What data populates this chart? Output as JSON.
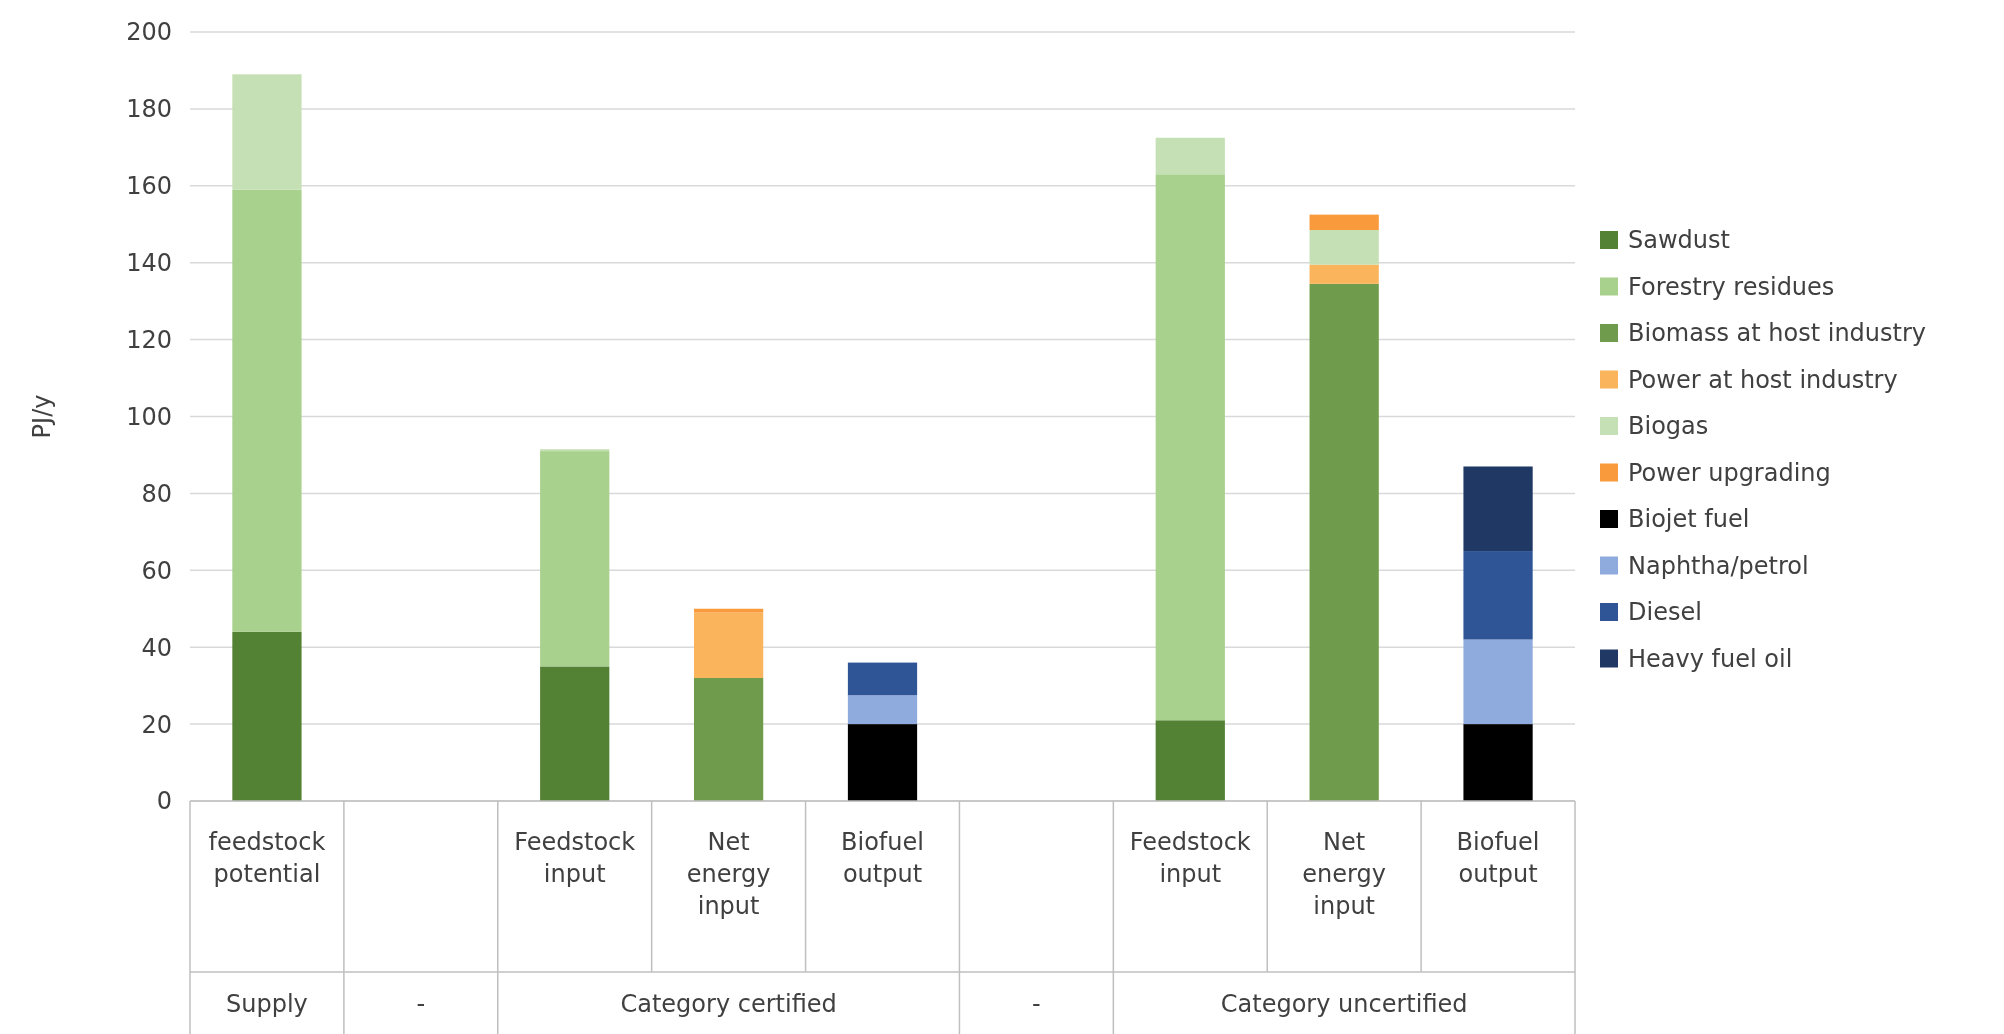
{
  "chart_data": {
    "type": "bar",
    "stacked": true,
    "ylabel": "PJ/y",
    "ylim": [
      0,
      200
    ],
    "yticks": [
      0,
      20,
      40,
      60,
      80,
      100,
      120,
      140,
      160,
      180,
      200
    ],
    "grid": "y",
    "legend": "right",
    "categories": [
      "feedstock potential",
      null,
      "Feedstock input",
      "Net energy input",
      "Biofuel output",
      null,
      "Feedstock input",
      "Net energy input",
      "Biofuel output"
    ],
    "annotations": [
      "Supply",
      "-",
      "Category certified",
      "-",
      "Category uncertified"
    ],
    "series": [
      {
        "name": "Sawdust",
        "color": "#548235",
        "values": [
          44,
          null,
          35,
          null,
          null,
          null,
          21,
          null,
          null
        ]
      },
      {
        "name": "Forestry residues",
        "color": "#a9d18e",
        "values": [
          115,
          null,
          56,
          null,
          null,
          null,
          142,
          null,
          null
        ]
      },
      {
        "name": "Biomass at host industry",
        "color": "#6f9c4c",
        "values": [
          null,
          null,
          null,
          32,
          null,
          null,
          null,
          134.5,
          null
        ]
      },
      {
        "name": "Power at host industry",
        "color": "#f9b45c",
        "values": [
          null,
          null,
          null,
          17,
          null,
          null,
          null,
          5,
          null
        ]
      },
      {
        "name": "Biogas",
        "color": "#c5e0b4",
        "values": [
          30,
          null,
          0.5,
          null,
          null,
          null,
          9.5,
          9,
          null
        ]
      },
      {
        "name": "Power upgrading",
        "color": "#f99a3c",
        "values": [
          null,
          null,
          null,
          1,
          null,
          null,
          null,
          4,
          null
        ]
      },
      {
        "name": "Biojet fuel",
        "color": "#000000",
        "values": [
          null,
          null,
          null,
          null,
          20,
          null,
          null,
          null,
          20
        ]
      },
      {
        "name": "Naphtha/petrol",
        "color": "#8faadc",
        "values": [
          null,
          null,
          null,
          null,
          7.5,
          null,
          null,
          null,
          22
        ]
      },
      {
        "name": "Diesel",
        "color": "#2f5597",
        "values": [
          null,
          null,
          null,
          null,
          8.5,
          null,
          null,
          null,
          23
        ]
      },
      {
        "name": "Heavy fuel oil",
        "color": "#203864",
        "values": [
          null,
          null,
          null,
          null,
          null,
          null,
          null,
          null,
          22
        ]
      }
    ]
  }
}
